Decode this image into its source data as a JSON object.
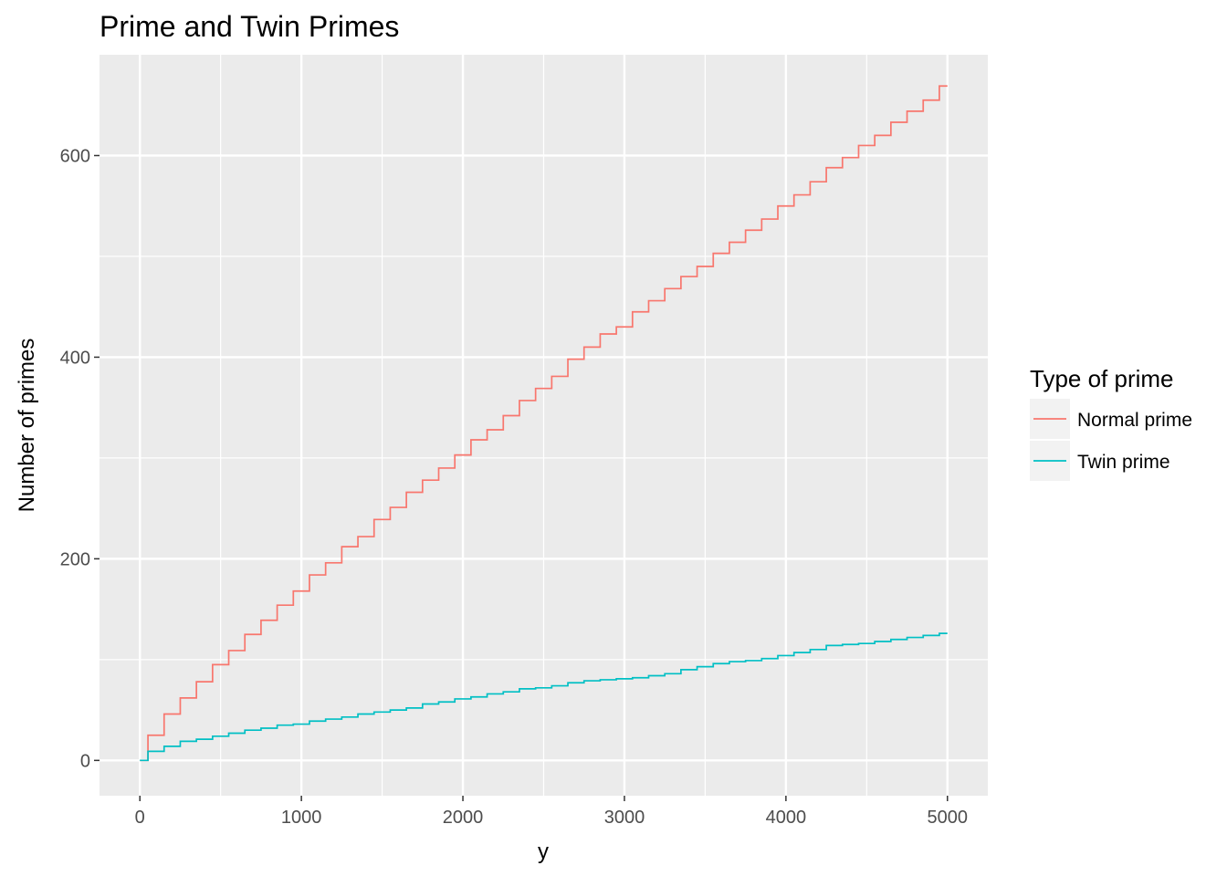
{
  "chart_data": {
    "type": "line",
    "title": "Prime and Twin Primes",
    "xlabel": "y",
    "ylabel": "Number of primes",
    "xlim": [
      -250,
      5250
    ],
    "ylim": [
      -35,
      700
    ],
    "x_ticks": [
      0,
      1000,
      2000,
      3000,
      4000,
      5000
    ],
    "x_tick_labels": [
      "0",
      "1000",
      "2000",
      "3000",
      "4000",
      "5000"
    ],
    "y_ticks": [
      0,
      200,
      400,
      600
    ],
    "y_tick_labels": [
      "0",
      "200",
      "400",
      "600"
    ],
    "x_minor_ticks": [
      500,
      1500,
      2500,
      3500,
      4500
    ],
    "y_minor_ticks": [
      100,
      300,
      500
    ],
    "grid": true,
    "panel_background": "#ebebeb",
    "grid_color": "#ffffff",
    "legend": {
      "title": "Type of prime",
      "placement": "right",
      "entries": [
        "Normal prime",
        "Twin prime"
      ]
    },
    "series": [
      {
        "name": "Normal prime",
        "color": "#f8766d",
        "x": [
          0,
          100,
          200,
          300,
          400,
          500,
          600,
          700,
          800,
          900,
          1000,
          1100,
          1200,
          1300,
          1400,
          1500,
          1600,
          1700,
          1800,
          1900,
          2000,
          2100,
          2200,
          2300,
          2400,
          2500,
          2600,
          2700,
          2800,
          2900,
          3000,
          3100,
          3200,
          3300,
          3400,
          3500,
          3600,
          3700,
          3800,
          3900,
          4000,
          4100,
          4200,
          4300,
          4400,
          4500,
          4600,
          4700,
          4800,
          4900,
          5000
        ],
        "values": [
          0,
          25,
          46,
          62,
          78,
          95,
          109,
          125,
          139,
          154,
          168,
          184,
          196,
          212,
          222,
          239,
          251,
          266,
          278,
          290,
          303,
          318,
          328,
          342,
          357,
          369,
          381,
          398,
          410,
          423,
          430,
          445,
          456,
          468,
          480,
          490,
          503,
          514,
          526,
          537,
          550,
          561,
          574,
          588,
          598,
          610,
          620,
          633,
          644,
          655,
          669
        ]
      },
      {
        "name": "Twin prime",
        "color": "#00bfc4",
        "x": [
          0,
          100,
          200,
          300,
          400,
          500,
          600,
          700,
          800,
          900,
          1000,
          1100,
          1200,
          1300,
          1400,
          1500,
          1600,
          1700,
          1800,
          1900,
          2000,
          2100,
          2200,
          2300,
          2400,
          2500,
          2600,
          2700,
          2800,
          2900,
          3000,
          3100,
          3200,
          3300,
          3400,
          3500,
          3600,
          3700,
          3800,
          3900,
          4000,
          4100,
          4200,
          4300,
          4400,
          4500,
          4600,
          4700,
          4800,
          4900,
          5000
        ],
        "values": [
          0,
          9,
          14,
          19,
          21,
          24,
          27,
          30,
          32,
          35,
          36,
          39,
          41,
          43,
          46,
          48,
          50,
          52,
          56,
          58,
          61,
          63,
          66,
          68,
          71,
          72,
          74,
          77,
          79,
          80,
          81,
          82,
          84,
          86,
          90,
          93,
          96,
          98,
          99,
          101,
          104,
          107,
          110,
          114,
          115,
          116,
          118,
          120,
          122,
          124,
          126
        ]
      }
    ]
  }
}
